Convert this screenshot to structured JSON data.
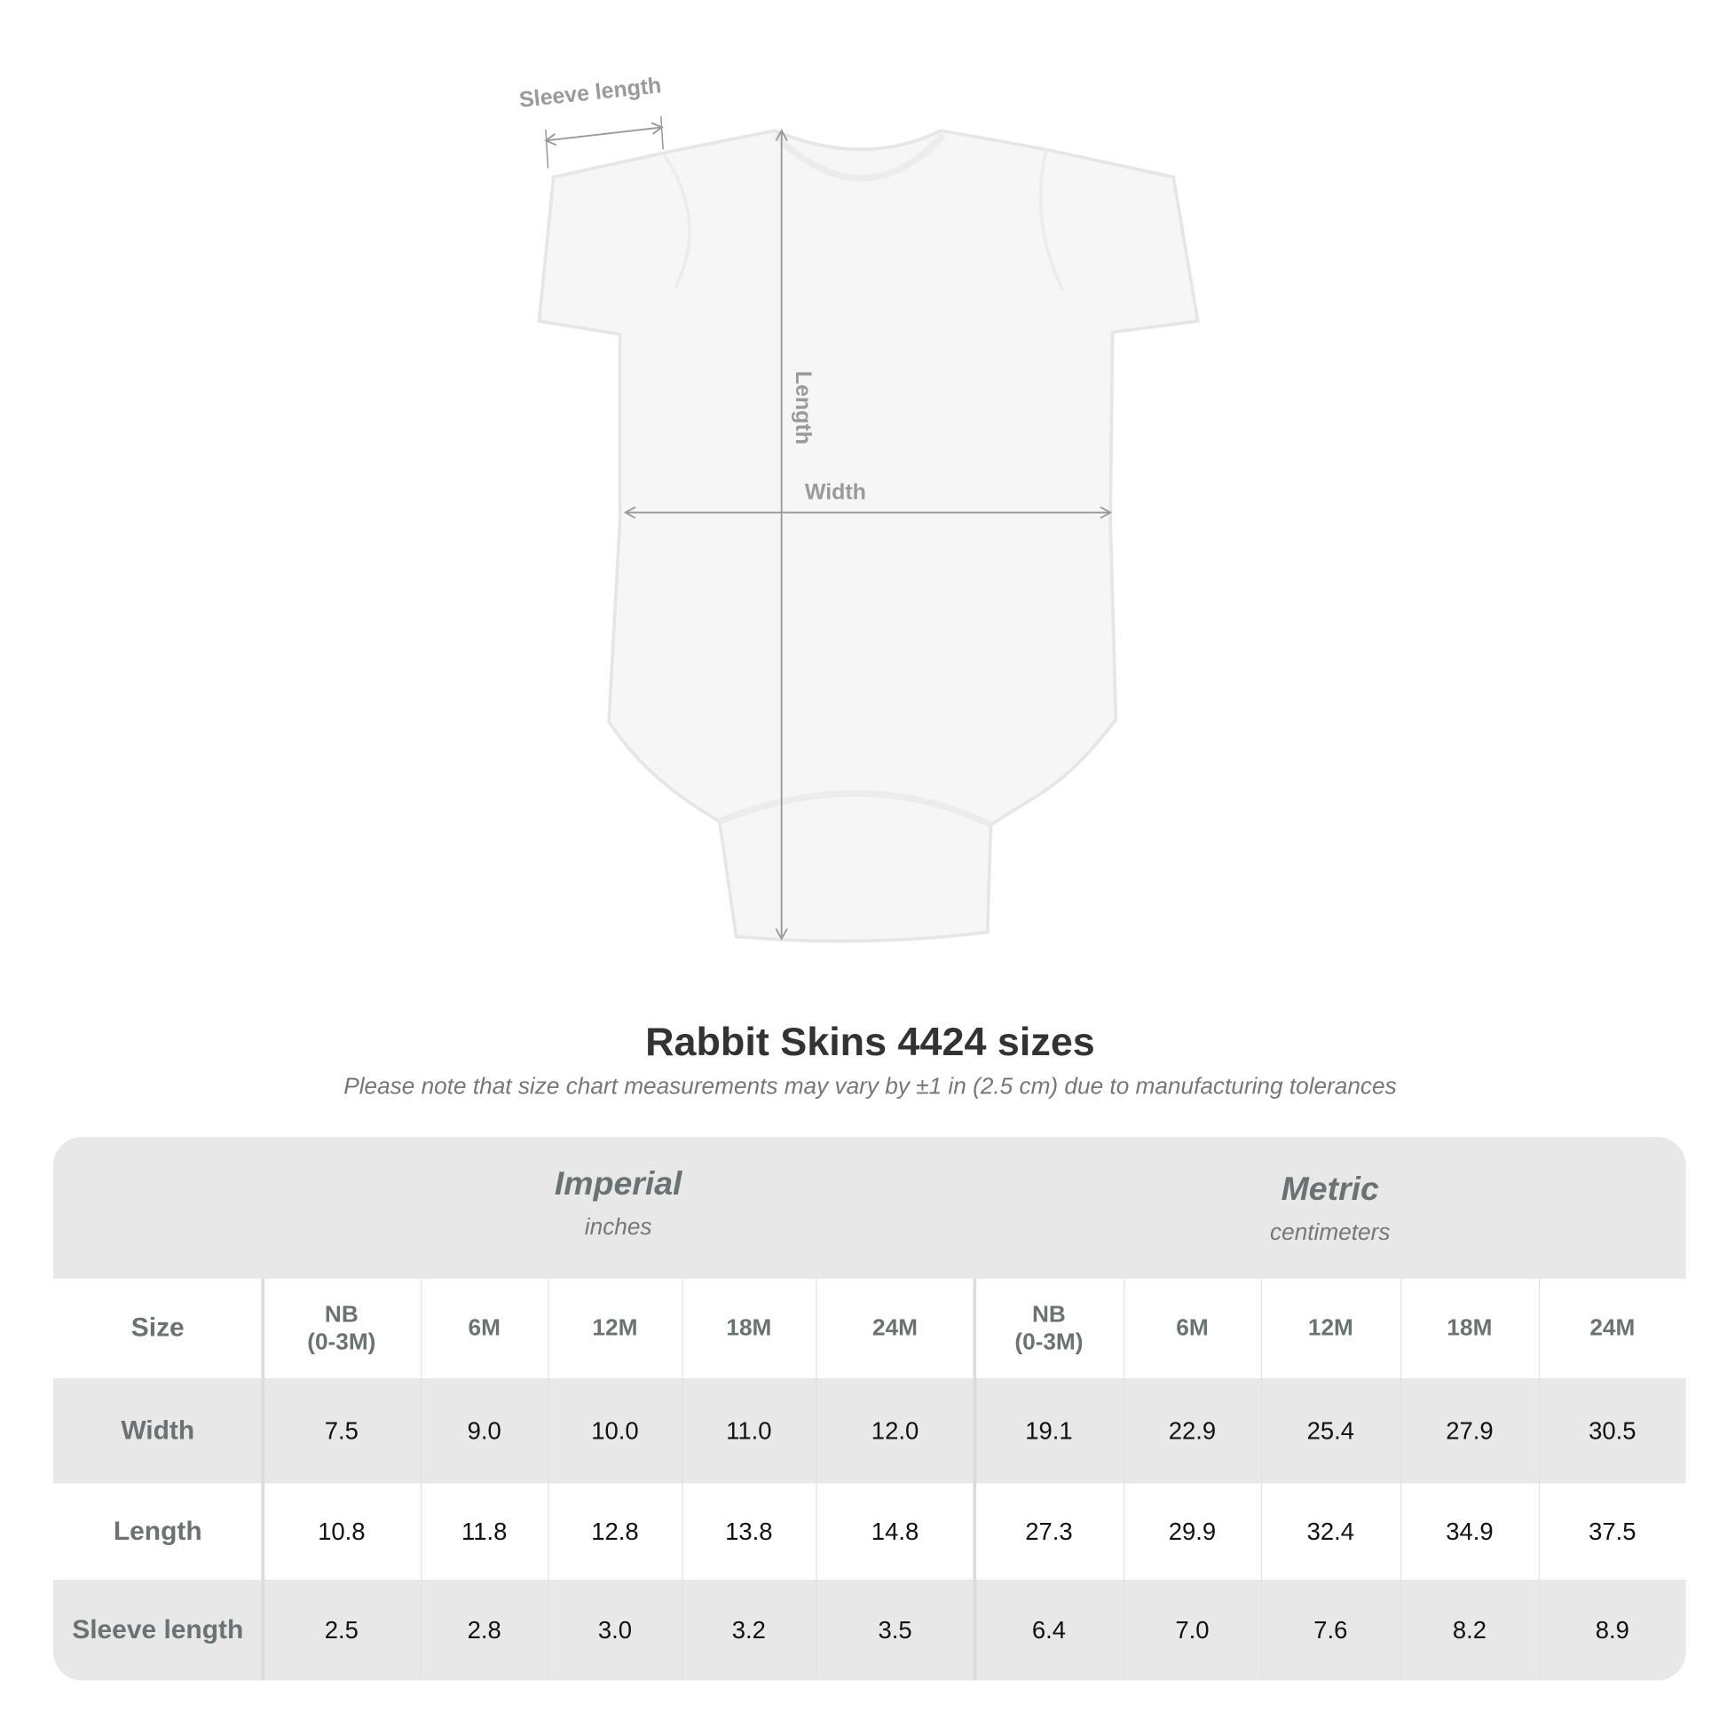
{
  "diagram": {
    "labels": {
      "sleeve_length": "Sleeve length",
      "length": "Length",
      "width": "Width"
    }
  },
  "title": "Rabbit Skins 4424 sizes",
  "subtitle": "Please note that size chart measurements may vary by ±1 in (2.5 cm) due to manufacturing tolerances",
  "table": {
    "imperial": {
      "name": "Imperial",
      "unit": "inches"
    },
    "metric": {
      "name": "Metric",
      "unit": "centimeters"
    },
    "size_label": "Size",
    "imperial_sizes": [
      "NB\n(0-3M)",
      "6M",
      "12M",
      "18M",
      "24M"
    ],
    "metric_sizes": [
      "NB\n(0-3M)",
      "6M",
      "12M",
      "18M",
      "24M"
    ],
    "rows": [
      {
        "label": "Width",
        "imperial": [
          "7.5",
          "9.0",
          "10.0",
          "11.0",
          "12.0"
        ],
        "metric": [
          "19.1",
          "22.9",
          "25.4",
          "27.9",
          "30.5"
        ]
      },
      {
        "label": "Length",
        "imperial": [
          "10.8",
          "11.8",
          "12.8",
          "13.8",
          "14.8"
        ],
        "metric": [
          "27.3",
          "29.9",
          "32.4",
          "34.9",
          "37.5"
        ]
      },
      {
        "label": "Sleeve length",
        "imperial": [
          "2.5",
          "2.8",
          "3.0",
          "3.2",
          "3.5"
        ],
        "metric": [
          "6.4",
          "7.0",
          "7.6",
          "8.2",
          "8.9"
        ]
      }
    ]
  },
  "colors": {
    "header_text": "#6b7272",
    "band_gray": "#e8e8e8",
    "measure_line": "#9a9a9a"
  }
}
